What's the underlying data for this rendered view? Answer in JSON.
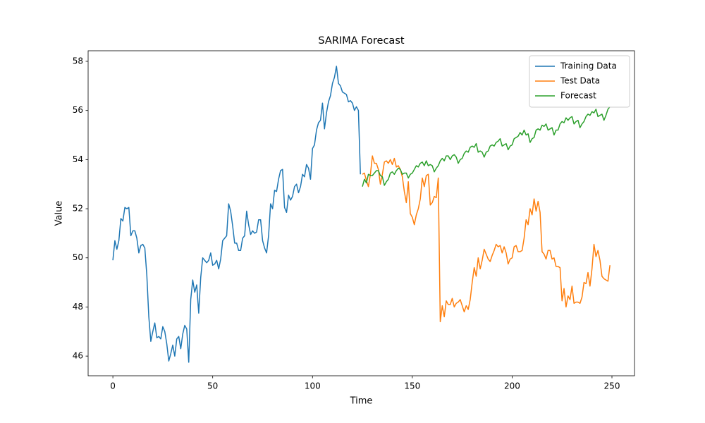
{
  "chart_data": {
    "type": "line",
    "title": "SARIMA Forecast",
    "x_label": "Time",
    "y_label": "Value",
    "xlim": [
      -12.4,
      261.3
    ],
    "xticks": [
      0,
      50,
      100,
      150,
      200,
      250
    ],
    "ylim": [
      45.2,
      58.43
    ],
    "yticks": [
      46,
      48,
      50,
      52,
      54,
      56,
      58
    ],
    "grid": false,
    "legend": "upper right",
    "series": [
      {
        "name": "Training Data",
        "color": "#1f77b4",
        "x": [
          0,
          1,
          2,
          3,
          4,
          5,
          6,
          7,
          8,
          9,
          10,
          11,
          12,
          13,
          14,
          15,
          16,
          17,
          18,
          19,
          20,
          21,
          22,
          23,
          24,
          25,
          26,
          27,
          28,
          29,
          30,
          31,
          32,
          33,
          34,
          35,
          36,
          37,
          38,
          39,
          40,
          41,
          42,
          43,
          44,
          45,
          46,
          47,
          48,
          49,
          50,
          51,
          52,
          53,
          54,
          55,
          56,
          57,
          58,
          59,
          60,
          61,
          62,
          63,
          64,
          65,
          66,
          67,
          68,
          69,
          70,
          71,
          72,
          73,
          74,
          75,
          76,
          77,
          78,
          79,
          80,
          81,
          82,
          83,
          84,
          85,
          86,
          87,
          88,
          89,
          90,
          91,
          92,
          93,
          94,
          95,
          96,
          97,
          98,
          99,
          100,
          101,
          102,
          103,
          104,
          105,
          106,
          107,
          108,
          109,
          110,
          111,
          112,
          113,
          114,
          115,
          116,
          117,
          118,
          119,
          120,
          121,
          122,
          123,
          124
        ],
        "values": [
          49.9,
          50.7,
          50.35,
          50.7,
          51.6,
          51.5,
          52.05,
          52.0,
          52.05,
          50.9,
          51.1,
          51.1,
          50.8,
          50.2,
          50.5,
          50.55,
          50.4,
          49.3,
          47.6,
          46.6,
          47.0,
          47.35,
          46.75,
          46.8,
          46.7,
          47.2,
          47.0,
          46.5,
          45.8,
          46.1,
          46.45,
          46.0,
          46.7,
          46.8,
          46.3,
          46.9,
          47.25,
          47.1,
          45.75,
          48.3,
          49.1,
          48.6,
          48.9,
          47.75,
          49.2,
          50.0,
          49.9,
          49.8,
          49.9,
          50.2,
          49.7,
          49.75,
          49.9,
          49.55,
          49.95,
          50.7,
          50.8,
          50.9,
          52.2,
          51.9,
          51.3,
          50.6,
          50.6,
          50.3,
          50.3,
          50.8,
          50.9,
          51.9,
          51.35,
          50.95,
          51.1,
          51.0,
          51.05,
          51.55,
          51.55,
          50.7,
          50.4,
          50.2,
          50.9,
          52.2,
          52.0,
          52.75,
          52.7,
          53.2,
          53.55,
          53.6,
          52.05,
          51.85,
          52.55,
          52.35,
          52.5,
          52.9,
          53.0,
          52.65,
          52.9,
          53.4,
          53.3,
          53.8,
          53.65,
          53.2,
          54.45,
          54.6,
          55.2,
          55.5,
          55.6,
          56.3,
          55.25,
          55.9,
          56.35,
          56.6,
          57.1,
          57.35,
          57.8,
          57.1,
          57.0,
          56.75,
          56.7,
          56.65,
          56.35,
          56.4,
          56.3,
          56.0,
          56.15,
          56.0,
          53.4
        ]
      },
      {
        "name": "Test Data",
        "color": "#ff7f0e",
        "x": [
          125,
          126,
          127,
          128,
          129,
          130,
          131,
          132,
          133,
          134,
          135,
          136,
          137,
          138,
          139,
          140,
          141,
          142,
          143,
          144,
          145,
          146,
          147,
          148,
          149,
          150,
          151,
          152,
          153,
          154,
          155,
          156,
          157,
          158,
          159,
          160,
          161,
          162,
          163,
          164,
          165,
          166,
          167,
          168,
          169,
          170,
          171,
          172,
          173,
          174,
          175,
          176,
          177,
          178,
          179,
          180,
          181,
          182,
          183,
          184,
          185,
          186,
          187,
          188,
          189,
          190,
          191,
          192,
          193,
          194,
          195,
          196,
          197,
          198,
          199,
          200,
          201,
          202,
          203,
          204,
          205,
          206,
          207,
          208,
          209,
          210,
          211,
          212,
          213,
          214,
          215,
          216,
          217,
          218,
          219,
          220,
          221,
          222,
          223,
          224,
          225,
          226,
          227,
          228,
          229,
          230,
          231,
          232,
          233,
          234,
          235,
          236,
          237,
          238,
          239,
          240,
          241,
          242,
          243,
          244,
          245,
          246,
          247,
          248,
          249
        ],
        "values": [
          53.4,
          53.45,
          53.15,
          52.9,
          53.4,
          54.15,
          53.85,
          53.85,
          53.6,
          53.0,
          53.4,
          53.9,
          53.95,
          53.85,
          54.0,
          53.8,
          54.05,
          53.7,
          53.75,
          53.6,
          53.3,
          52.7,
          52.25,
          53.1,
          51.8,
          51.65,
          51.35,
          51.75,
          52.0,
          52.4,
          53.25,
          52.9,
          53.35,
          53.4,
          52.15,
          52.25,
          52.5,
          52.45,
          53.25,
          47.4,
          48.05,
          47.6,
          48.25,
          48.1,
          48.1,
          48.35,
          48.0,
          48.15,
          48.2,
          48.3,
          48.05,
          47.8,
          48.05,
          47.9,
          48.3,
          49.0,
          49.6,
          49.25,
          50.0,
          49.55,
          49.9,
          50.35,
          50.15,
          49.95,
          49.85,
          50.1,
          50.3,
          50.55,
          50.45,
          50.5,
          50.2,
          50.45,
          50.2,
          49.75,
          49.95,
          50.0,
          50.45,
          50.5,
          50.25,
          50.25,
          50.3,
          50.8,
          51.55,
          51.35,
          52.0,
          51.75,
          52.4,
          51.9,
          52.3,
          51.85,
          50.25,
          50.15,
          49.95,
          50.3,
          50.3,
          49.95,
          50.0,
          49.65,
          49.65,
          49.6,
          48.25,
          48.75,
          48.0,
          48.45,
          48.3,
          48.85,
          48.15,
          48.2,
          48.2,
          48.15,
          48.4,
          49.0,
          48.95,
          49.4,
          48.85,
          49.55,
          50.55,
          50.05,
          50.3,
          49.9,
          49.25,
          49.15,
          49.1,
          49.05,
          49.7
        ]
      },
      {
        "name": "Forecast",
        "color": "#2ca02c",
        "x": [
          125,
          126,
          127,
          128,
          129,
          130,
          131,
          132,
          133,
          134,
          135,
          136,
          137,
          138,
          139,
          140,
          141,
          142,
          143,
          144,
          145,
          146,
          147,
          148,
          149,
          150,
          151,
          152,
          153,
          154,
          155,
          156,
          157,
          158,
          159,
          160,
          161,
          162,
          163,
          164,
          165,
          166,
          167,
          168,
          169,
          170,
          171,
          172,
          173,
          174,
          175,
          176,
          177,
          178,
          179,
          180,
          181,
          182,
          183,
          184,
          185,
          186,
          187,
          188,
          189,
          190,
          191,
          192,
          193,
          194,
          195,
          196,
          197,
          198,
          199,
          200,
          201,
          202,
          203,
          204,
          205,
          206,
          207,
          208,
          209,
          210,
          211,
          212,
          213,
          214,
          215,
          216,
          217,
          218,
          219,
          220,
          221,
          222,
          223,
          224,
          225,
          226,
          227,
          228,
          229,
          230,
          231,
          232,
          233,
          234,
          235,
          236,
          237,
          238,
          239,
          240,
          241,
          242,
          243,
          244,
          245,
          246,
          247,
          248,
          249
        ],
        "values": [
          52.9,
          53.2,
          53.05,
          53.4,
          53.35,
          53.35,
          53.45,
          53.55,
          53.55,
          53.35,
          53.3,
          52.95,
          53.1,
          53.2,
          53.45,
          53.5,
          53.4,
          53.55,
          53.65,
          53.6,
          53.4,
          53.45,
          53.45,
          53.25,
          53.4,
          53.45,
          53.6,
          53.75,
          53.7,
          53.85,
          53.9,
          53.75,
          53.95,
          53.75,
          53.8,
          53.75,
          53.5,
          53.65,
          53.75,
          53.95,
          54.05,
          53.95,
          54.15,
          54.15,
          54.0,
          54.15,
          54.2,
          54.1,
          53.85,
          54.0,
          54.05,
          54.25,
          54.35,
          54.3,
          54.5,
          54.55,
          54.5,
          54.65,
          54.3,
          54.35,
          54.3,
          54.1,
          54.3,
          54.35,
          54.55,
          54.6,
          54.55,
          54.7,
          54.75,
          54.85,
          54.55,
          54.6,
          54.65,
          54.4,
          54.55,
          54.6,
          54.85,
          54.9,
          54.95,
          55.1,
          55.0,
          55.2,
          55.0,
          55.05,
          54.7,
          54.85,
          54.9,
          55.2,
          55.25,
          55.2,
          55.4,
          55.35,
          55.45,
          55.2,
          55.25,
          55.3,
          55.0,
          55.2,
          55.2,
          55.45,
          55.55,
          55.5,
          55.7,
          55.6,
          55.7,
          55.75,
          55.45,
          55.55,
          55.6,
          55.3,
          55.45,
          55.55,
          55.75,
          55.85,
          55.8,
          55.95,
          55.9,
          56.05,
          55.75,
          55.8,
          55.85,
          55.6,
          55.8,
          56.05,
          56.15
        ]
      }
    ]
  }
}
